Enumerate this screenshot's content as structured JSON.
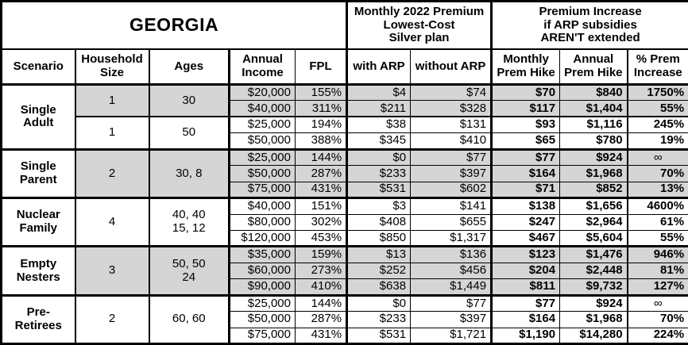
{
  "colors": {
    "shaded_row": "#d5d5d5",
    "border": "#000000",
    "background": "#ffffff",
    "text": "#000000"
  },
  "header": {
    "state": "GEORGIA",
    "premium_section": "Monthly 2022 Premium\nLowest-Cost\nSilver plan",
    "increase_section": "Premium Increase\nif ARP subsidies\nAREN'T extended",
    "columns": {
      "scenario": "Scenario",
      "household_size": "Household\nSize",
      "ages": "Ages",
      "annual_income": "Annual\nIncome",
      "fpl": "FPL",
      "with_arp": "with ARP",
      "without_arp": "without ARP",
      "monthly_prem_hike": "Monthly\nPrem Hike",
      "annual_prem_hike": "Annual\nPrem Hike",
      "pct_prem_increase": "% Prem\nIncrease"
    }
  },
  "chart_data": {
    "type": "table",
    "title": "GEORGIA",
    "column_headers": [
      "Scenario",
      "Household Size",
      "Ages",
      "Annual Income",
      "FPL",
      "with ARP",
      "without ARP",
      "Monthly Prem Hike",
      "Annual Prem Hike",
      "% Prem Increase"
    ],
    "section_headers": [
      "Monthly 2022 Premium Lowest-Cost Silver plan",
      "Premium Increase if ARP subsidies AREN'T extended"
    ],
    "groups": [
      {
        "scenario": "Single\nAdult",
        "subgroups": [
          {
            "household": "1",
            "ages": "30",
            "shaded": true,
            "rows": [
              {
                "income": "$20,000",
                "fpl": "155%",
                "with_arp": "$4",
                "without_arp": "$74",
                "monthly_hike": "$70",
                "annual_hike": "$840",
                "pct_increase": "1750%"
              },
              {
                "income": "$40,000",
                "fpl": "311%",
                "with_arp": "$211",
                "without_arp": "$328",
                "monthly_hike": "$117",
                "annual_hike": "$1,404",
                "pct_increase": "55%"
              }
            ]
          },
          {
            "household": "1",
            "ages": "50",
            "shaded": false,
            "rows": [
              {
                "income": "$25,000",
                "fpl": "194%",
                "with_arp": "$38",
                "without_arp": "$131",
                "monthly_hike": "$93",
                "annual_hike": "$1,116",
                "pct_increase": "245%"
              },
              {
                "income": "$50,000",
                "fpl": "388%",
                "with_arp": "$345",
                "without_arp": "$410",
                "monthly_hike": "$65",
                "annual_hike": "$780",
                "pct_increase": "19%"
              }
            ]
          }
        ]
      },
      {
        "scenario": "Single\nParent",
        "subgroups": [
          {
            "household": "2",
            "ages": "30, 8",
            "shaded": true,
            "rows": [
              {
                "income": "$25,000",
                "fpl": "144%",
                "with_arp": "$0",
                "without_arp": "$77",
                "monthly_hike": "$77",
                "annual_hike": "$924",
                "pct_increase": "∞"
              },
              {
                "income": "$50,000",
                "fpl": "287%",
                "with_arp": "$233",
                "without_arp": "$397",
                "monthly_hike": "$164",
                "annual_hike": "$1,968",
                "pct_increase": "70%"
              },
              {
                "income": "$75,000",
                "fpl": "431%",
                "with_arp": "$531",
                "without_arp": "$602",
                "monthly_hike": "$71",
                "annual_hike": "$852",
                "pct_increase": "13%"
              }
            ]
          }
        ]
      },
      {
        "scenario": "Nuclear\nFamily",
        "subgroups": [
          {
            "household": "4",
            "ages": "40, 40\n15, 12",
            "shaded": false,
            "rows": [
              {
                "income": "$40,000",
                "fpl": "151%",
                "with_arp": "$3",
                "without_arp": "$141",
                "monthly_hike": "$138",
                "annual_hike": "$1,656",
                "pct_increase": "4600%"
              },
              {
                "income": "$80,000",
                "fpl": "302%",
                "with_arp": "$408",
                "without_arp": "$655",
                "monthly_hike": "$247",
                "annual_hike": "$2,964",
                "pct_increase": "61%"
              },
              {
                "income": "$120,000",
                "fpl": "453%",
                "with_arp": "$850",
                "without_arp": "$1,317",
                "monthly_hike": "$467",
                "annual_hike": "$5,604",
                "pct_increase": "55%"
              }
            ]
          }
        ]
      },
      {
        "scenario": "Empty\nNesters",
        "subgroups": [
          {
            "household": "3",
            "ages": "50, 50\n24",
            "shaded": true,
            "rows": [
              {
                "income": "$35,000",
                "fpl": "159%",
                "with_arp": "$13",
                "without_arp": "$136",
                "monthly_hike": "$123",
                "annual_hike": "$1,476",
                "pct_increase": "946%"
              },
              {
                "income": "$60,000",
                "fpl": "273%",
                "with_arp": "$252",
                "without_arp": "$456",
                "monthly_hike": "$204",
                "annual_hike": "$2,448",
                "pct_increase": "81%"
              },
              {
                "income": "$90,000",
                "fpl": "410%",
                "with_arp": "$638",
                "without_arp": "$1,449",
                "monthly_hike": "$811",
                "annual_hike": "$9,732",
                "pct_increase": "127%"
              }
            ]
          }
        ]
      },
      {
        "scenario": "Pre-\nRetirees",
        "subgroups": [
          {
            "household": "2",
            "ages": "60, 60",
            "shaded": false,
            "rows": [
              {
                "income": "$25,000",
                "fpl": "144%",
                "with_arp": "$0",
                "without_arp": "$77",
                "monthly_hike": "$77",
                "annual_hike": "$924",
                "pct_increase": "∞"
              },
              {
                "income": "$50,000",
                "fpl": "287%",
                "with_arp": "$233",
                "without_arp": "$397",
                "monthly_hike": "$164",
                "annual_hike": "$1,968",
                "pct_increase": "70%"
              },
              {
                "income": "$75,000",
                "fpl": "431%",
                "with_arp": "$531",
                "without_arp": "$1,721",
                "monthly_hike": "$1,190",
                "annual_hike": "$14,280",
                "pct_increase": "224%"
              }
            ]
          }
        ]
      }
    ]
  }
}
